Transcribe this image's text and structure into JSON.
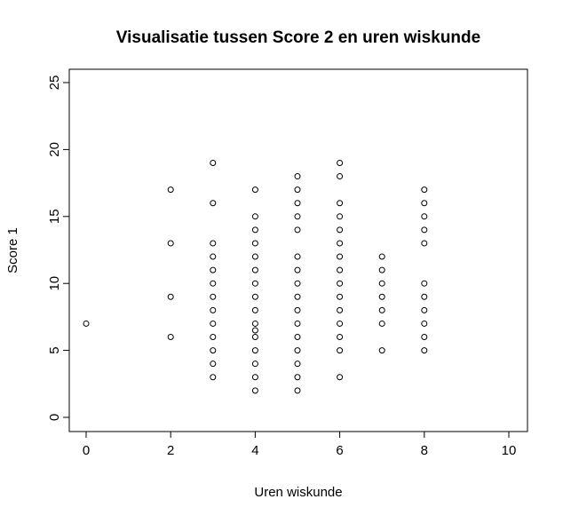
{
  "chart_data": {
    "type": "scatter",
    "title": "Visualisatie tussen Score 2 en uren wiskunde",
    "xlabel": "Uren wiskunde",
    "ylabel": "Score 1",
    "xlim": [
      0,
      10
    ],
    "ylim": [
      0,
      25
    ],
    "x_ticks": [
      "0",
      "2",
      "4",
      "6",
      "8",
      "10"
    ],
    "y_ticks": [
      "0",
      "5",
      "10",
      "15",
      "20",
      "25"
    ],
    "grid": false,
    "legend": "none",
    "colors": {
      "point_stroke": "#000000",
      "axis": "#000000",
      "background": "#ffffff"
    },
    "points": [
      {
        "x": 0,
        "y": 7
      },
      {
        "x": 2,
        "y": 6
      },
      {
        "x": 2,
        "y": 9
      },
      {
        "x": 2,
        "y": 13
      },
      {
        "x": 2,
        "y": 17
      },
      {
        "x": 3,
        "y": 3
      },
      {
        "x": 3,
        "y": 4
      },
      {
        "x": 3,
        "y": 5
      },
      {
        "x": 3,
        "y": 6
      },
      {
        "x": 3,
        "y": 7
      },
      {
        "x": 3,
        "y": 8
      },
      {
        "x": 3,
        "y": 9
      },
      {
        "x": 3,
        "y": 10
      },
      {
        "x": 3,
        "y": 11
      },
      {
        "x": 3,
        "y": 12
      },
      {
        "x": 3,
        "y": 13
      },
      {
        "x": 3,
        "y": 16
      },
      {
        "x": 3,
        "y": 19
      },
      {
        "x": 4,
        "y": 2
      },
      {
        "x": 4,
        "y": 3
      },
      {
        "x": 4,
        "y": 4
      },
      {
        "x": 4,
        "y": 5
      },
      {
        "x": 4,
        "y": 6
      },
      {
        "x": 4,
        "y": 6.5
      },
      {
        "x": 4,
        "y": 7
      },
      {
        "x": 4,
        "y": 8
      },
      {
        "x": 4,
        "y": 9
      },
      {
        "x": 4,
        "y": 10
      },
      {
        "x": 4,
        "y": 11
      },
      {
        "x": 4,
        "y": 12
      },
      {
        "x": 4,
        "y": 13
      },
      {
        "x": 4,
        "y": 14
      },
      {
        "x": 4,
        "y": 15
      },
      {
        "x": 4,
        "y": 17
      },
      {
        "x": 5,
        "y": 2
      },
      {
        "x": 5,
        "y": 3
      },
      {
        "x": 5,
        "y": 4
      },
      {
        "x": 5,
        "y": 5
      },
      {
        "x": 5,
        "y": 6
      },
      {
        "x": 5,
        "y": 7
      },
      {
        "x": 5,
        "y": 8
      },
      {
        "x": 5,
        "y": 9
      },
      {
        "x": 5,
        "y": 10
      },
      {
        "x": 5,
        "y": 11
      },
      {
        "x": 5,
        "y": 12
      },
      {
        "x": 5,
        "y": 14
      },
      {
        "x": 5,
        "y": 15
      },
      {
        "x": 5,
        "y": 16
      },
      {
        "x": 5,
        "y": 17
      },
      {
        "x": 5,
        "y": 18
      },
      {
        "x": 6,
        "y": 3
      },
      {
        "x": 6,
        "y": 5
      },
      {
        "x": 6,
        "y": 6
      },
      {
        "x": 6,
        "y": 7
      },
      {
        "x": 6,
        "y": 8
      },
      {
        "x": 6,
        "y": 9
      },
      {
        "x": 6,
        "y": 10
      },
      {
        "x": 6,
        "y": 11
      },
      {
        "x": 6,
        "y": 12
      },
      {
        "x": 6,
        "y": 13
      },
      {
        "x": 6,
        "y": 14
      },
      {
        "x": 6,
        "y": 15
      },
      {
        "x": 6,
        "y": 16
      },
      {
        "x": 6,
        "y": 18
      },
      {
        "x": 6,
        "y": 19
      },
      {
        "x": 7,
        "y": 5
      },
      {
        "x": 7,
        "y": 7
      },
      {
        "x": 7,
        "y": 8
      },
      {
        "x": 7,
        "y": 9
      },
      {
        "x": 7,
        "y": 10
      },
      {
        "x": 7,
        "y": 11
      },
      {
        "x": 7,
        "y": 12
      },
      {
        "x": 8,
        "y": 5
      },
      {
        "x": 8,
        "y": 6
      },
      {
        "x": 8,
        "y": 7
      },
      {
        "x": 8,
        "y": 8
      },
      {
        "x": 8,
        "y": 9
      },
      {
        "x": 8,
        "y": 10
      },
      {
        "x": 8,
        "y": 13
      },
      {
        "x": 8,
        "y": 14
      },
      {
        "x": 8,
        "y": 15
      },
      {
        "x": 8,
        "y": 16
      },
      {
        "x": 8,
        "y": 17
      }
    ]
  }
}
